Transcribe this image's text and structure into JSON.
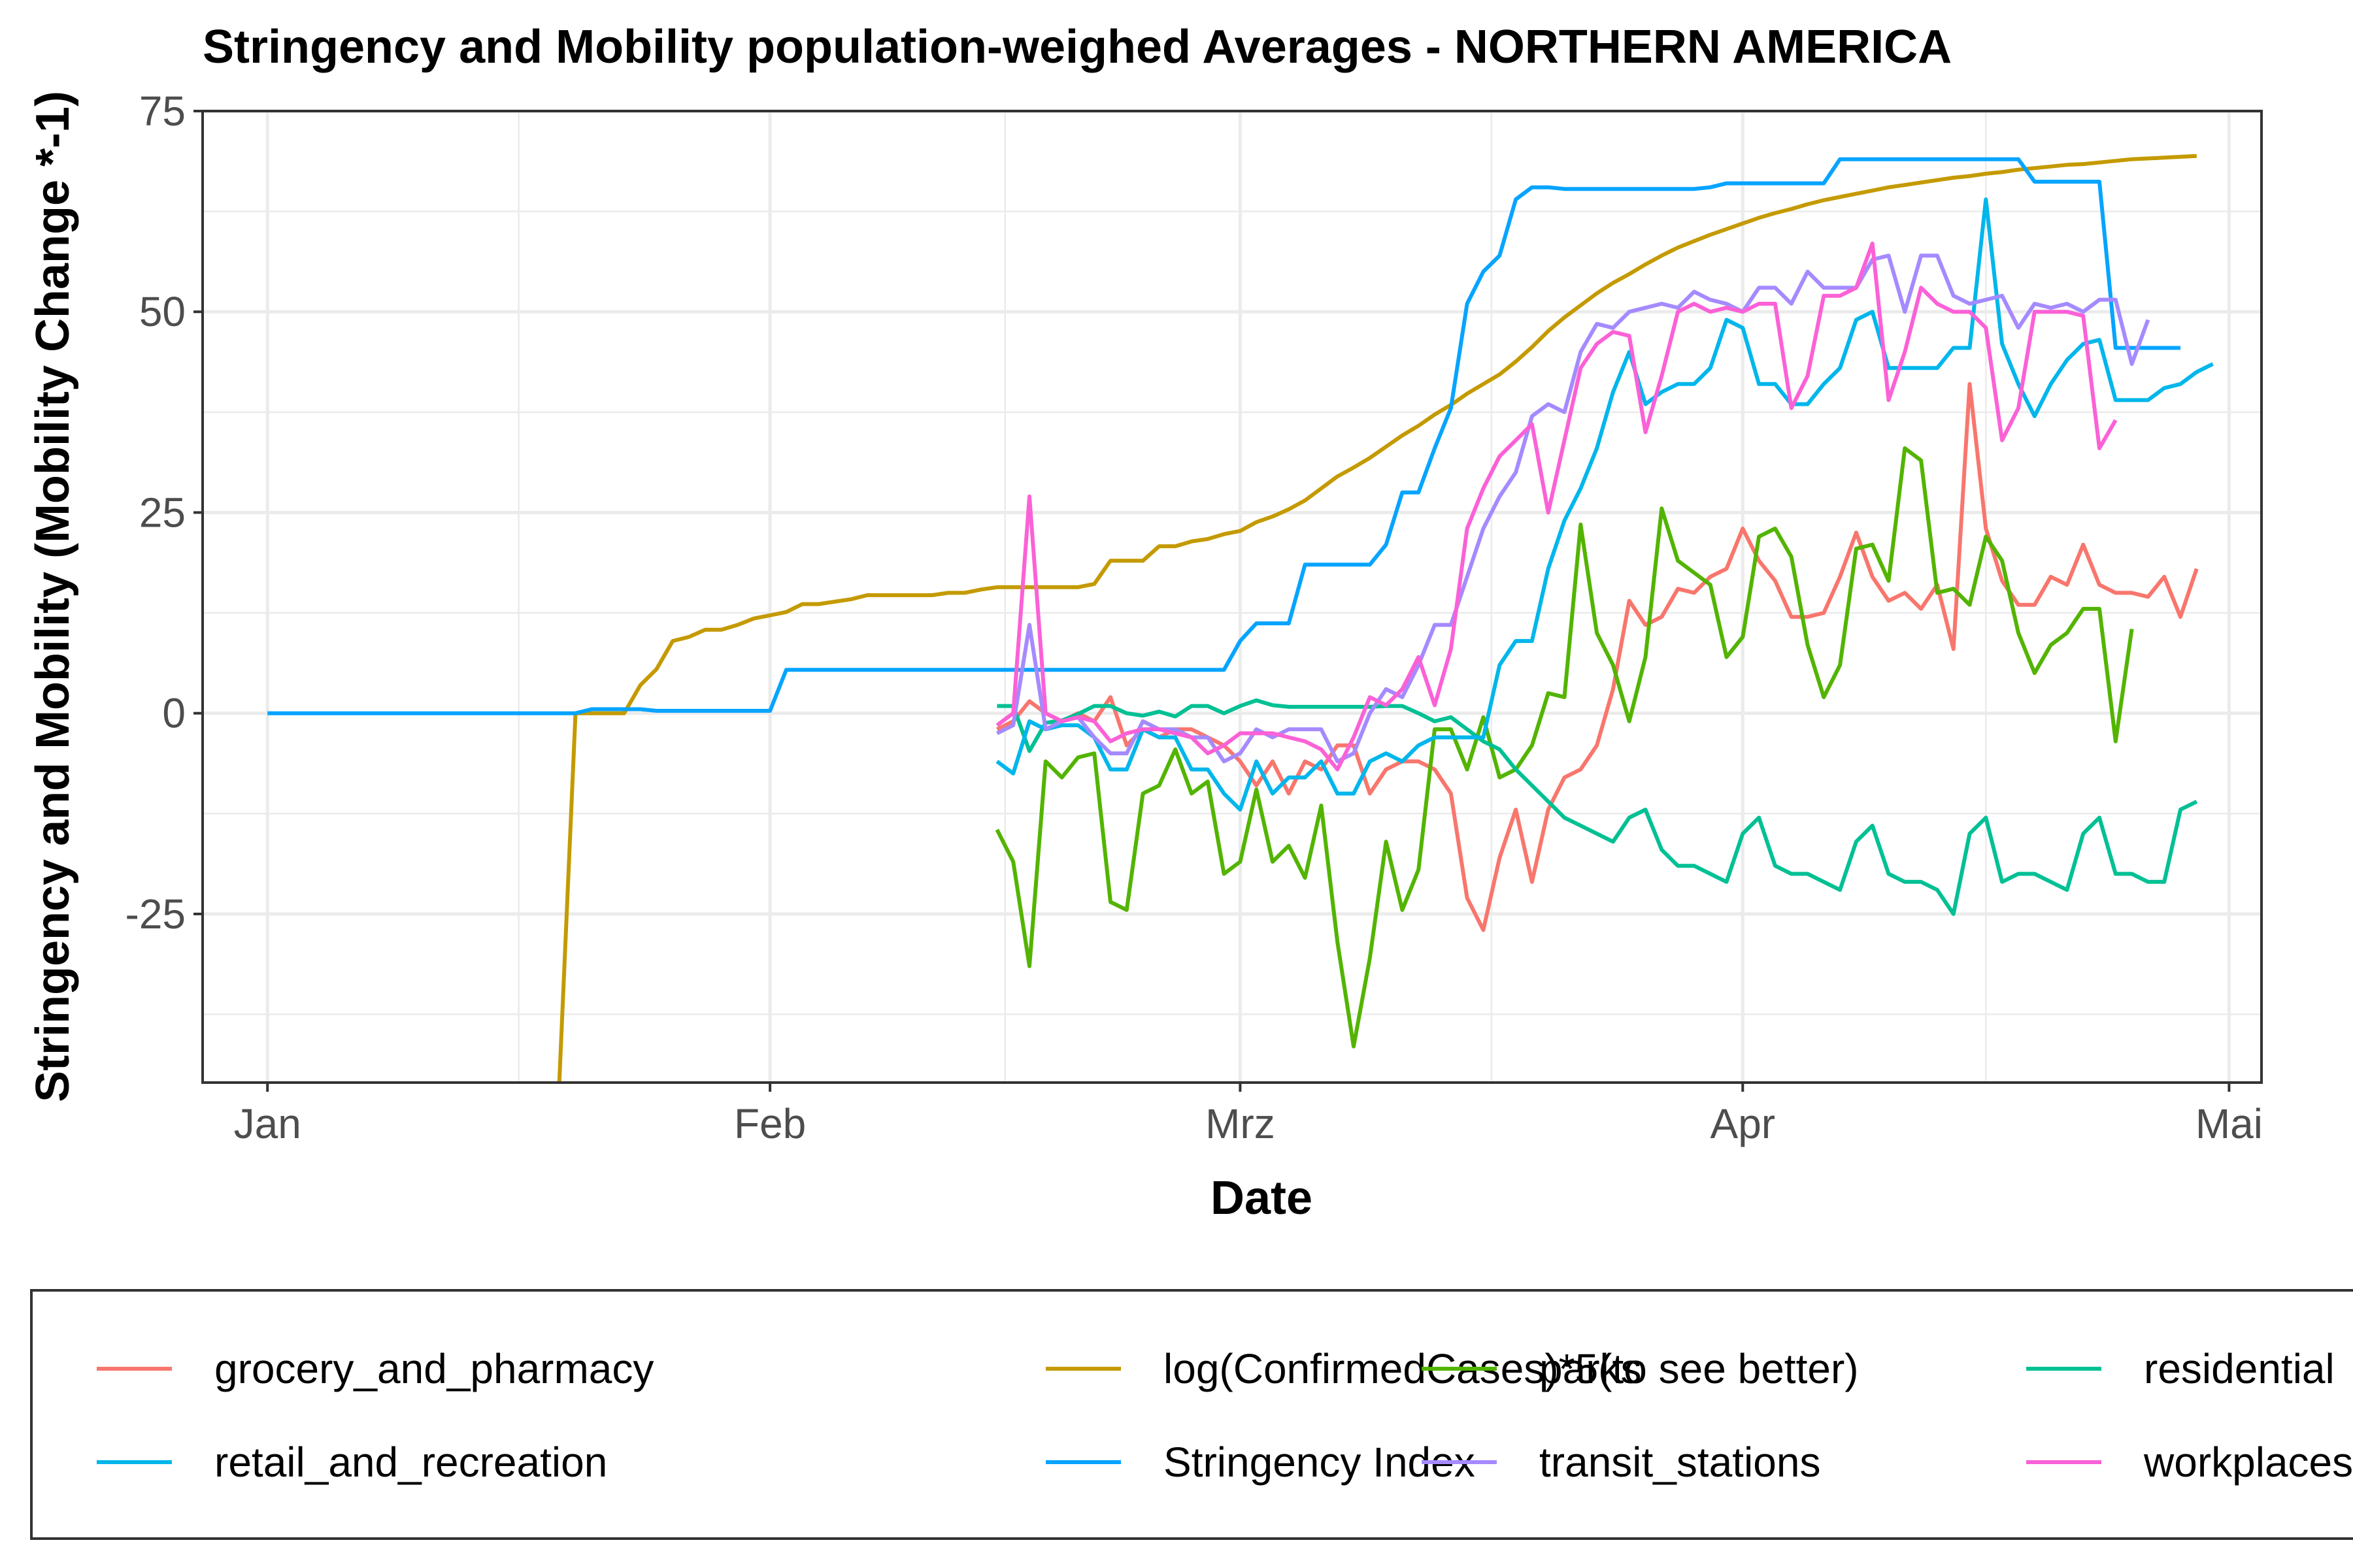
{
  "chart_data": {
    "type": "line",
    "title": "Stringency and Mobility population-weighed Averages - NORTHERN AMERICA",
    "xlabel": "Date",
    "ylabel": "Stringency and Mobility (Mobility Change *-1)",
    "xlim": [
      "2019-12-28",
      "2020-05-03"
    ],
    "ylim": [
      -46,
      75
    ],
    "x_ticks": [
      {
        "date": "2020-01-01",
        "label": "Jan"
      },
      {
        "date": "2020-02-01",
        "label": "Feb"
      },
      {
        "date": "2020-03-01",
        "label": "Mrz"
      },
      {
        "date": "2020-04-01",
        "label": "Apr"
      },
      {
        "date": "2020-05-01",
        "label": "Mai"
      }
    ],
    "y_ticks": [
      {
        "value": -25,
        "label": "-25"
      },
      {
        "value": 0,
        "label": "0"
      },
      {
        "value": 25,
        "label": "25"
      },
      {
        "value": 50,
        "label": "50"
      },
      {
        "value": 75,
        "label": "75"
      }
    ],
    "grid": true,
    "legend_position": "bottom",
    "series": [
      {
        "name": "grocery_and_pharmacy",
        "color": "#F8766D",
        "start": "2020-02-15",
        "values": [
          -2,
          -1,
          1.5,
          0,
          -1,
          0,
          -1,
          2,
          -4,
          -2,
          -3,
          -2,
          -2,
          -3,
          -4,
          -6,
          -9,
          -6,
          -10,
          -6,
          -7,
          -4,
          -4,
          -10,
          -7,
          -6,
          -6,
          -7,
          -10,
          -23,
          -27,
          -18,
          -12,
          -21,
          -12,
          -8,
          -7,
          -4,
          3,
          14,
          11,
          12,
          15.5,
          15,
          17,
          18,
          23,
          19,
          16.5,
          12,
          12,
          12.5,
          17,
          22.5,
          17,
          14,
          15,
          13,
          16,
          8,
          41,
          23,
          16.5,
          13.5,
          13.5,
          17,
          16,
          21,
          16,
          15,
          15,
          14.5,
          17,
          12,
          18
        ]
      },
      {
        "name": "log(ConfirmedCases)*5(to see better)",
        "color": "#C49A00",
        "points": [
          [
            "2020-01-19",
            -46
          ],
          [
            "2020-01-20",
            0
          ],
          [
            "2020-01-21",
            0
          ],
          [
            "2020-01-22",
            0
          ],
          [
            "2020-01-23",
            0
          ],
          [
            "2020-01-24",
            3.5
          ],
          [
            "2020-01-25",
            5.5
          ],
          [
            "2020-01-26",
            9
          ],
          [
            "2020-01-27",
            9.5
          ],
          [
            "2020-01-28",
            10.4
          ],
          [
            "2020-01-29",
            10.4
          ],
          [
            "2020-01-30",
            11
          ],
          [
            "2020-01-31",
            11.8
          ],
          [
            "2020-02-01",
            12.2
          ],
          [
            "2020-02-02",
            12.6
          ],
          [
            "2020-02-03",
            13.6
          ],
          [
            "2020-02-04",
            13.6
          ],
          [
            "2020-02-05",
            13.9
          ],
          [
            "2020-02-06",
            14.2
          ],
          [
            "2020-02-07",
            14.7
          ],
          [
            "2020-02-08",
            14.7
          ],
          [
            "2020-02-09",
            14.7
          ],
          [
            "2020-02-10",
            14.7
          ],
          [
            "2020-02-11",
            14.7
          ],
          [
            "2020-02-12",
            15
          ],
          [
            "2020-02-13",
            15
          ],
          [
            "2020-02-14",
            15.4
          ],
          [
            "2020-02-15",
            15.7
          ],
          [
            "2020-02-16",
            15.7
          ],
          [
            "2020-02-17",
            15.7
          ],
          [
            "2020-02-18",
            15.7
          ],
          [
            "2020-02-19",
            15.7
          ],
          [
            "2020-02-20",
            15.7
          ],
          [
            "2020-02-21",
            16.1
          ],
          [
            "2020-02-22",
            19
          ],
          [
            "2020-02-23",
            19
          ],
          [
            "2020-02-24",
            19
          ],
          [
            "2020-02-25",
            20.8
          ],
          [
            "2020-02-26",
            20.8
          ],
          [
            "2020-02-27",
            21.4
          ],
          [
            "2020-02-28",
            21.7
          ],
          [
            "2020-02-29",
            22.3
          ],
          [
            "2020-03-01",
            22.7
          ],
          [
            "2020-03-02",
            23.8
          ],
          [
            "2020-03-03",
            24.5
          ],
          [
            "2020-03-04",
            25.4
          ],
          [
            "2020-03-05",
            26.5
          ],
          [
            "2020-03-06",
            28
          ],
          [
            "2020-03-07",
            29.5
          ],
          [
            "2020-03-08",
            30.6
          ],
          [
            "2020-03-09",
            31.8
          ],
          [
            "2020-03-10",
            33.2
          ],
          [
            "2020-03-11",
            34.6
          ],
          [
            "2020-03-12",
            35.8
          ],
          [
            "2020-03-13",
            37.2
          ],
          [
            "2020-03-14",
            38.4
          ],
          [
            "2020-03-15",
            39.8
          ],
          [
            "2020-03-16",
            41
          ],
          [
            "2020-03-17",
            42.2
          ],
          [
            "2020-03-18",
            43.8
          ],
          [
            "2020-03-19",
            45.6
          ],
          [
            "2020-03-20",
            47.6
          ],
          [
            "2020-03-21",
            49.3
          ],
          [
            "2020-03-22",
            50.8
          ],
          [
            "2020-03-23",
            52.3
          ],
          [
            "2020-03-24",
            53.6
          ],
          [
            "2020-03-25",
            54.7
          ],
          [
            "2020-03-26",
            55.9
          ],
          [
            "2020-03-27",
            57
          ],
          [
            "2020-03-28",
            58
          ],
          [
            "2020-03-29",
            58.8
          ],
          [
            "2020-03-30",
            59.6
          ],
          [
            "2020-03-31",
            60.3
          ],
          [
            "2020-04-01",
            61
          ],
          [
            "2020-04-02",
            61.7
          ],
          [
            "2020-04-03",
            62.3
          ],
          [
            "2020-04-04",
            62.8
          ],
          [
            "2020-04-05",
            63.4
          ],
          [
            "2020-04-06",
            63.9
          ],
          [
            "2020-04-07",
            64.3
          ],
          [
            "2020-04-08",
            64.7
          ],
          [
            "2020-04-09",
            65.1
          ],
          [
            "2020-04-10",
            65.5
          ],
          [
            "2020-04-11",
            65.8
          ],
          [
            "2020-04-12",
            66.1
          ],
          [
            "2020-04-13",
            66.4
          ],
          [
            "2020-04-14",
            66.7
          ],
          [
            "2020-04-15",
            66.9
          ],
          [
            "2020-04-16",
            67.2
          ],
          [
            "2020-04-17",
            67.4
          ],
          [
            "2020-04-18",
            67.7
          ],
          [
            "2020-04-19",
            67.9
          ],
          [
            "2020-04-20",
            68.1
          ],
          [
            "2020-04-21",
            68.3
          ],
          [
            "2020-04-22",
            68.4
          ],
          [
            "2020-04-23",
            68.6
          ],
          [
            "2020-04-24",
            68.8
          ],
          [
            "2020-04-25",
            69
          ],
          [
            "2020-04-26",
            69.1
          ],
          [
            "2020-04-27",
            69.2
          ],
          [
            "2020-04-28",
            69.3
          ],
          [
            "2020-04-29",
            69.4
          ]
        ]
      },
      {
        "name": "parks",
        "color": "#53B400",
        "start": "2020-02-15",
        "values": [
          -14.5,
          -18.5,
          -31.5,
          -6,
          -8,
          -5.5,
          -5,
          -23.5,
          -24.5,
          -10,
          -9,
          -4.5,
          -10,
          -8.5,
          -20,
          -18.5,
          -9.5,
          -18.5,
          -16.5,
          -20.5,
          -11.5,
          -28.5,
          -41.5,
          -30.5,
          -16,
          -24.5,
          -19.5,
          -2,
          -2,
          -7,
          -0.5,
          -8,
          -7,
          -4,
          2.5,
          2,
          23.5,
          10,
          6,
          -1,
          7,
          25.5,
          19,
          17.5,
          16,
          7,
          9.5,
          22,
          23,
          19.5,
          8.5,
          2,
          6,
          20.5,
          21,
          16.5,
          33,
          31.5,
          15,
          15.5,
          13.5,
          22,
          19,
          10,
          5,
          8.5,
          10,
          13,
          13,
          -3.5,
          10.5
        ]
      },
      {
        "name": "residential",
        "color": "#00C094",
        "start": "2020-02-15",
        "values": [
          0.9,
          0.9,
          -4.7,
          -1.2,
          -0.9,
          -0.1,
          0.9,
          0.9,
          0,
          -0.3,
          0.2,
          -0.4,
          0.9,
          0.9,
          0,
          0.9,
          1.6,
          1,
          0.8,
          0.8,
          0.8,
          0.8,
          0.8,
          0.8,
          0.9,
          0.9,
          0,
          -1,
          -0.5,
          -2,
          -3.5,
          -4.5,
          -7,
          -9,
          -11,
          -13,
          -14,
          -15,
          -16,
          -13,
          -12,
          -17,
          -19,
          -19,
          -20,
          -21,
          -15,
          -13,
          -19,
          -20,
          -20,
          -21,
          -22,
          -16,
          -14,
          -20,
          -21,
          -21,
          -22,
          -25,
          -15,
          -13,
          -21,
          -20,
          -20,
          -21,
          -22,
          -15,
          -13,
          -20,
          -20,
          -21,
          -21,
          -12,
          -11
        ]
      },
      {
        "name": "retail_and_recreation",
        "color": "#00B6EB",
        "start": "2020-02-15",
        "values": [
          -6,
          -7.5,
          -1,
          -2,
          -1.5,
          -1.5,
          -3,
          -7,
          -7,
          -2,
          -3,
          -3,
          -7,
          -7,
          -10,
          -12,
          -6,
          -10,
          -8,
          -8,
          -6,
          -10,
          -10,
          -6,
          -5,
          -6,
          -4,
          -3,
          -3,
          -3,
          -3,
          6,
          9,
          9,
          18,
          24,
          28,
          33,
          40,
          45,
          38.5,
          40,
          41,
          41,
          43,
          49,
          48,
          41,
          41,
          38.5,
          38.5,
          41,
          43,
          49,
          50,
          43,
          43,
          43,
          43,
          45.5,
          45.5,
          64,
          46,
          41,
          37,
          41,
          44,
          46,
          46.5,
          39,
          39,
          39,
          40.5,
          41,
          42.5,
          43.5
        ]
      },
      {
        "name": "Stringency Index",
        "color": "#06A4FF",
        "points": [
          [
            "2020-01-01",
            0
          ],
          [
            "2020-01-20",
            0
          ],
          [
            "2020-01-21",
            0.5
          ],
          [
            "2020-01-24",
            0.5
          ],
          [
            "2020-01-25",
            0.3
          ],
          [
            "2020-02-01",
            0.3
          ],
          [
            "2020-02-02",
            5.4
          ],
          [
            "2020-02-29",
            5.4
          ],
          [
            "2020-03-01",
            9
          ],
          [
            "2020-03-02",
            11.2
          ],
          [
            "2020-03-04",
            11.2
          ],
          [
            "2020-03-05",
            18.5
          ],
          [
            "2020-03-09",
            18.5
          ],
          [
            "2020-03-10",
            21
          ],
          [
            "2020-03-11",
            27.5
          ],
          [
            "2020-03-12",
            27.5
          ],
          [
            "2020-03-13",
            33
          ],
          [
            "2020-03-14",
            38
          ],
          [
            "2020-03-15",
            51
          ],
          [
            "2020-03-16",
            55
          ],
          [
            "2020-03-17",
            57
          ],
          [
            "2020-03-18",
            64
          ],
          [
            "2020-03-19",
            65.5
          ],
          [
            "2020-03-20",
            65.5
          ],
          [
            "2020-03-21",
            65.3
          ],
          [
            "2020-03-29",
            65.3
          ],
          [
            "2020-03-30",
            65.5
          ],
          [
            "2020-03-31",
            66
          ],
          [
            "2020-04-06",
            66
          ],
          [
            "2020-04-07",
            69
          ],
          [
            "2020-04-18",
            69
          ],
          [
            "2020-04-19",
            66.2
          ],
          [
            "2020-04-22",
            66.2
          ],
          [
            "2020-04-23",
            66.2
          ],
          [
            "2020-04-24",
            45.5
          ],
          [
            "2020-04-28",
            45.5
          ]
        ]
      },
      {
        "name": "transit_stations",
        "color": "#A58AFF",
        "start": "2020-02-15",
        "values": [
          -2.5,
          -1.5,
          11,
          -2,
          -1,
          -0.5,
          -3,
          -5,
          -5,
          -1,
          -2,
          -2,
          -3,
          -3,
          -6,
          -5,
          -2,
          -3,
          -2,
          -2,
          -2,
          -6,
          -5,
          0,
          3,
          2,
          6,
          11,
          11,
          17,
          23,
          27,
          30,
          37,
          38.5,
          37.5,
          45,
          48.5,
          48,
          50,
          50.5,
          51,
          50.5,
          52.5,
          51.5,
          51,
          50,
          53,
          53,
          51,
          55,
          53,
          53,
          53,
          56.5,
          57,
          50,
          57,
          57,
          52,
          51,
          51.5,
          52,
          48,
          51,
          50.5,
          51,
          50,
          51.5,
          51.5,
          43.5,
          49
        ]
      },
      {
        "name": "workplaces",
        "color": "#FB61D7",
        "start": "2020-02-15",
        "values": [
          -1.5,
          0,
          27,
          0,
          -1,
          -0.5,
          -1,
          -3.5,
          -2.5,
          -2,
          -2,
          -2.5,
          -3,
          -5,
          -4,
          -2.5,
          -2.5,
          -2.5,
          -3,
          -3.5,
          -4.5,
          -7,
          -3,
          2,
          1,
          3,
          7,
          1,
          8,
          23,
          28,
          32,
          34,
          36,
          25,
          34,
          43,
          46,
          47.5,
          47,
          35,
          42,
          50,
          51,
          50,
          50.5,
          50,
          51,
          51,
          38,
          42,
          52,
          52,
          53,
          58.5,
          39,
          45,
          53,
          51,
          50,
          50,
          48,
          34,
          38,
          50,
          50,
          50,
          49.5,
          33,
          36.5
        ]
      }
    ]
  }
}
